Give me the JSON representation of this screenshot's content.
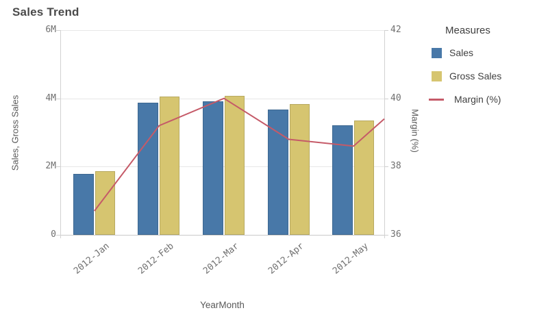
{
  "title": "Sales Trend",
  "legend": {
    "title": "Measures",
    "items": [
      {
        "label": "Sales",
        "color": "#4878a8",
        "type": "square"
      },
      {
        "label": "Gross Sales",
        "color": "#d6c570",
        "type": "square"
      },
      {
        "label": "Margin (%)",
        "color": "#c55a68",
        "type": "line"
      }
    ]
  },
  "chart_data": {
    "type": "combo",
    "title": "Sales Trend",
    "categories": [
      "2012-Jan",
      "2012-Feb",
      "2012-Mar",
      "2012-Apr",
      "2012-May"
    ],
    "series": [
      {
        "name": "Sales",
        "type": "bar",
        "axis": "left",
        "unit": "M",
        "color": "#4878a8",
        "values": [
          1.78,
          3.88,
          3.91,
          3.67,
          3.21
        ]
      },
      {
        "name": "Gross Sales",
        "type": "bar",
        "axis": "left",
        "unit": "M",
        "color": "#d6c570",
        "values": [
          1.86,
          4.05,
          4.08,
          3.83,
          3.35
        ]
      },
      {
        "name": "Margin (%)",
        "type": "line",
        "axis": "right",
        "unit": "%",
        "color": "#c55a68",
        "values": [
          36.7,
          39.2,
          40.0,
          38.8,
          38.6
        ],
        "line_extends_to_right_edge_value": 39.4
      }
    ],
    "left_axis": {
      "title": "Sales, Gross Sales",
      "tick_labels": [
        "6M",
        "4M",
        "2M",
        "0"
      ],
      "tick_values_m": [
        6,
        4,
        2,
        0
      ],
      "range_m": [
        0,
        6
      ]
    },
    "right_axis": {
      "title": "Margin (%)",
      "tick_labels": [
        "42",
        "40",
        "38",
        "36"
      ],
      "tick_values": [
        42,
        40,
        38,
        36
      ],
      "range": [
        36,
        42
      ]
    },
    "x_axis": {
      "title": "YearMonth"
    },
    "grid": true,
    "legend_position": "right"
  }
}
